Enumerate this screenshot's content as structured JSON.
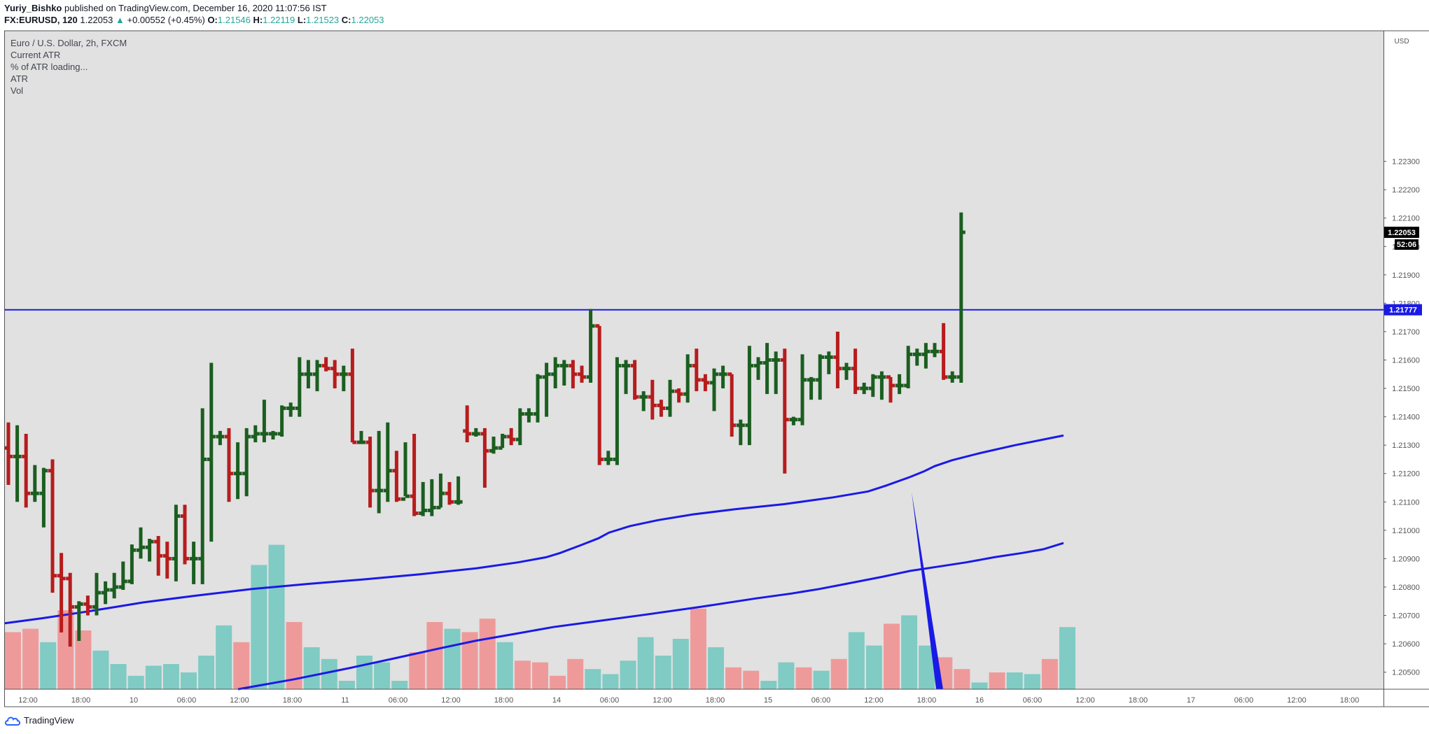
{
  "header": {
    "author": "Yuriy_Bishko",
    "published_text": "published on TradingView.com, December 16, 2020 11:07:56 IST",
    "symbol": "FX:EURUSD, 120",
    "last": "1.22053",
    "change": "+0.00552 (+0.45%)",
    "o_label": "O:",
    "o_value": "1.21546",
    "h_label": "H:",
    "h_value": "1.22119",
    "l_label": "L:",
    "l_value": "1.21523",
    "c_label": "C:",
    "c_value": "1.22053"
  },
  "legend": {
    "title": "Euro / U.S. Dollar, 2h, FXCM",
    "items": [
      "Current ATR",
      "% of ATR loading...",
      "ATR",
      "Vol"
    ]
  },
  "footer": {
    "brand": "TradingView"
  },
  "colors": {
    "up": "#1b5e20",
    "down": "#b71c1c",
    "vol_up": "#80cbc4",
    "vol_down": "#ef9a9a",
    "ma": "#1a1ae6",
    "hline": "#1a1ae6",
    "plot_bg": "#e1e1e1"
  },
  "chart_data": {
    "type": "ohlc",
    "currency": "USD",
    "ylim": [
      1.2044,
      1.2276
    ],
    "y_ticks": [
      "1.20500",
      "1.20600",
      "1.20700",
      "1.20800",
      "1.20900",
      "1.21000",
      "1.21100",
      "1.21200",
      "1.21300",
      "1.21400",
      "1.21500",
      "1.21600",
      "1.21700",
      "1.21800",
      "1.21900",
      "1.22000",
      "1.22100",
      "1.22200",
      "1.22300"
    ],
    "x_ticks": [
      "12:00",
      "18:00",
      "10",
      "06:00",
      "12:00",
      "18:00",
      "11",
      "06:00",
      "12:00",
      "18:00",
      "14",
      "06:00",
      "12:00",
      "18:00",
      "15",
      "06:00",
      "12:00",
      "18:00",
      "16",
      "06:00",
      "12:00",
      "18:00",
      "17",
      "06:00",
      "12:00",
      "18:00"
    ],
    "last_price_label": "1.22053",
    "countdown_label": "52:06",
    "hline_label": "1.21777",
    "hline_value": 1.21777,
    "bars": [
      {
        "o": 1.2129,
        "h": 1.2138,
        "l": 1.2116,
        "c": 1.2126
      },
      {
        "o": 1.2126,
        "h": 1.2137,
        "l": 1.211,
        "c": 1.2126
      },
      {
        "o": 1.2126,
        "h": 1.2134,
        "l": 1.2108,
        "c": 1.2113
      },
      {
        "o": 1.2113,
        "h": 1.2123,
        "l": 1.211,
        "c": 1.2113
      },
      {
        "o": 1.2113,
        "h": 1.2122,
        "l": 1.2101,
        "c": 1.2121
      },
      {
        "o": 1.2121,
        "h": 1.2125,
        "l": 1.2078,
        "c": 1.2084
      },
      {
        "o": 1.2084,
        "h": 1.2092,
        "l": 1.2064,
        "c": 1.2083
      },
      {
        "o": 1.2083,
        "h": 1.2085,
        "l": 1.2059,
        "c": 1.2073
      },
      {
        "o": 1.2073,
        "h": 1.2075,
        "l": 1.2061,
        "c": 1.2074
      },
      {
        "o": 1.2074,
        "h": 1.2077,
        "l": 1.207,
        "c": 1.2073
      },
      {
        "o": 1.2073,
        "h": 1.2085,
        "l": 1.207,
        "c": 1.2078
      },
      {
        "o": 1.2078,
        "h": 1.2082,
        "l": 1.2074,
        "c": 1.2079
      },
      {
        "o": 1.2079,
        "h": 1.2085,
        "l": 1.2076,
        "c": 1.208
      },
      {
        "o": 1.208,
        "h": 1.2089,
        "l": 1.2079,
        "c": 1.2082
      },
      {
        "o": 1.2082,
        "h": 1.2095,
        "l": 1.2081,
        "c": 1.2093
      },
      {
        "o": 1.2093,
        "h": 1.2101,
        "l": 1.209,
        "c": 1.2094
      },
      {
        "o": 1.2094,
        "h": 1.2097,
        "l": 1.2089,
        "c": 1.2096
      },
      {
        "o": 1.2096,
        "h": 1.2098,
        "l": 1.2084,
        "c": 1.2091
      },
      {
        "o": 1.2091,
        "h": 1.2096,
        "l": 1.2083,
        "c": 1.209
      },
      {
        "o": 1.209,
        "h": 1.2109,
        "l": 1.2082,
        "c": 1.2105
      },
      {
        "o": 1.2105,
        "h": 1.2109,
        "l": 1.2088,
        "c": 1.209
      },
      {
        "o": 1.209,
        "h": 1.2096,
        "l": 1.2081,
        "c": 1.209
      },
      {
        "o": 1.209,
        "h": 1.2143,
        "l": 1.2081,
        "c": 1.2125
      },
      {
        "o": 1.2125,
        "h": 1.2159,
        "l": 1.2096,
        "c": 1.2133
      },
      {
        "o": 1.2133,
        "h": 1.2135,
        "l": 1.213,
        "c": 1.2133
      },
      {
        "o": 1.2133,
        "h": 1.2136,
        "l": 1.211,
        "c": 1.212
      },
      {
        "o": 1.212,
        "h": 1.2131,
        "l": 1.2111,
        "c": 1.212
      },
      {
        "o": 1.212,
        "h": 1.2136,
        "l": 1.2112,
        "c": 1.2133
      },
      {
        "o": 1.2133,
        "h": 1.2137,
        "l": 1.2131,
        "c": 1.2134
      },
      {
        "o": 1.2134,
        "h": 1.2146,
        "l": 1.2131,
        "c": 1.2134
      },
      {
        "o": 1.2134,
        "h": 1.2135,
        "l": 1.2132,
        "c": 1.2134
      },
      {
        "o": 1.2134,
        "h": 1.2144,
        "l": 1.2133,
        "c": 1.2143
      },
      {
        "o": 1.2143,
        "h": 1.2145,
        "l": 1.214,
        "c": 1.2143
      },
      {
        "o": 1.2143,
        "h": 1.2161,
        "l": 1.214,
        "c": 1.2155
      },
      {
        "o": 1.2155,
        "h": 1.216,
        "l": 1.215,
        "c": 1.2155
      },
      {
        "o": 1.2155,
        "h": 1.216,
        "l": 1.2149,
        "c": 1.2158
      },
      {
        "o": 1.2158,
        "h": 1.2161,
        "l": 1.2156,
        "c": 1.2157
      },
      {
        "o": 1.2157,
        "h": 1.216,
        "l": 1.215,
        "c": 1.2155
      },
      {
        "o": 1.2155,
        "h": 1.2158,
        "l": 1.2149,
        "c": 1.2155
      },
      {
        "o": 1.2155,
        "h": 1.2164,
        "l": 1.2131,
        "c": 1.2131
      },
      {
        "o": 1.2131,
        "h": 1.2135,
        "l": 1.2131,
        "c": 1.2131
      },
      {
        "o": 1.2131,
        "h": 1.2133,
        "l": 1.2108,
        "c": 1.2114
      },
      {
        "o": 1.2114,
        "h": 1.2135,
        "l": 1.2106,
        "c": 1.2114
      },
      {
        "o": 1.2114,
        "h": 1.2138,
        "l": 1.211,
        "c": 1.2121
      },
      {
        "o": 1.2121,
        "h": 1.2128,
        "l": 1.211,
        "c": 1.2111
      },
      {
        "o": 1.2111,
        "h": 1.2131,
        "l": 1.2112,
        "c": 1.2112
      },
      {
        "o": 1.2112,
        "h": 1.2134,
        "l": 1.2105,
        "c": 1.2106
      },
      {
        "o": 1.2106,
        "h": 1.2117,
        "l": 1.2105,
        "c": 1.2107
      },
      {
        "o": 1.2107,
        "h": 1.2118,
        "l": 1.2105,
        "c": 1.2108
      },
      {
        "o": 1.2108,
        "h": 1.212,
        "l": 1.2108,
        "c": 1.2113
      },
      {
        "o": 1.2113,
        "h": 1.2117,
        "l": 1.2109,
        "c": 1.211
      },
      {
        "o": 1.211,
        "h": 1.2119,
        "l": 1.2109,
        "c": 1.211
      },
      {
        "o": 1.2135,
        "h": 1.2144,
        "l": 1.2131,
        "c": 1.2134
      },
      {
        "o": 1.2134,
        "h": 1.2136,
        "l": 1.2133,
        "c": 1.2134
      },
      {
        "o": 1.2134,
        "h": 1.2136,
        "l": 1.2115,
        "c": 1.2128
      },
      {
        "o": 1.2128,
        "h": 1.2133,
        "l": 1.2127,
        "c": 1.2129
      },
      {
        "o": 1.2129,
        "h": 1.2134,
        "l": 1.2129,
        "c": 1.2133
      },
      {
        "o": 1.2133,
        "h": 1.2136,
        "l": 1.213,
        "c": 1.2132
      },
      {
        "o": 1.2132,
        "h": 1.2143,
        "l": 1.213,
        "c": 1.2141
      },
      {
        "o": 1.2141,
        "h": 1.2143,
        "l": 1.2138,
        "c": 1.2141
      },
      {
        "o": 1.2141,
        "h": 1.2155,
        "l": 1.2138,
        "c": 1.2154
      },
      {
        "o": 1.2154,
        "h": 1.2159,
        "l": 1.214,
        "c": 1.2155
      },
      {
        "o": 1.2155,
        "h": 1.2161,
        "l": 1.215,
        "c": 1.2158
      },
      {
        "o": 1.2158,
        "h": 1.216,
        "l": 1.2151,
        "c": 1.2158
      },
      {
        "o": 1.2158,
        "h": 1.216,
        "l": 1.215,
        "c": 1.2155
      },
      {
        "o": 1.2155,
        "h": 1.2158,
        "l": 1.2152,
        "c": 1.2154
      },
      {
        "o": 1.2154,
        "h": 1.2178,
        "l": 1.2152,
        "c": 1.2172
      },
      {
        "o": 1.2172,
        "h": 1.2172,
        "l": 1.2123,
        "c": 1.2125
      },
      {
        "o": 1.2125,
        "h": 1.2128,
        "l": 1.2123,
        "c": 1.2125
      },
      {
        "o": 1.2125,
        "h": 1.2161,
        "l": 1.2123,
        "c": 1.2158
      },
      {
        "o": 1.2158,
        "h": 1.216,
        "l": 1.2148,
        "c": 1.2158
      },
      {
        "o": 1.2158,
        "h": 1.216,
        "l": 1.2146,
        "c": 1.2147
      },
      {
        "o": 1.2147,
        "h": 1.2149,
        "l": 1.2142,
        "c": 1.2147
      },
      {
        "o": 1.2147,
        "h": 1.2153,
        "l": 1.2139,
        "c": 1.2144
      },
      {
        "o": 1.2144,
        "h": 1.2146,
        "l": 1.214,
        "c": 1.2143
      },
      {
        "o": 1.2143,
        "h": 1.2153,
        "l": 1.214,
        "c": 1.2149
      },
      {
        "o": 1.2149,
        "h": 1.215,
        "l": 1.2145,
        "c": 1.2148
      },
      {
        "o": 1.2148,
        "h": 1.2162,
        "l": 1.2145,
        "c": 1.2158
      },
      {
        "o": 1.2158,
        "h": 1.2164,
        "l": 1.2149,
        "c": 1.2153
      },
      {
        "o": 1.2153,
        "h": 1.2155,
        "l": 1.2149,
        "c": 1.2152
      },
      {
        "o": 1.2152,
        "h": 1.2157,
        "l": 1.2142,
        "c": 1.2155
      },
      {
        "o": 1.2155,
        "h": 1.2158,
        "l": 1.215,
        "c": 1.2155
      },
      {
        "o": 1.2155,
        "h": 1.2155,
        "l": 1.2133,
        "c": 1.2137
      },
      {
        "o": 1.2137,
        "h": 1.2139,
        "l": 1.213,
        "c": 1.2137
      },
      {
        "o": 1.2137,
        "h": 1.2165,
        "l": 1.213,
        "c": 1.2158
      },
      {
        "o": 1.2158,
        "h": 1.2161,
        "l": 1.2153,
        "c": 1.2159
      },
      {
        "o": 1.2159,
        "h": 1.2166,
        "l": 1.2148,
        "c": 1.216
      },
      {
        "o": 1.216,
        "h": 1.2163,
        "l": 1.2148,
        "c": 1.216
      },
      {
        "o": 1.216,
        "h": 1.2164,
        "l": 1.212,
        "c": 1.2139
      },
      {
        "o": 1.2139,
        "h": 1.214,
        "l": 1.2137,
        "c": 1.2139
      },
      {
        "o": 1.2139,
        "h": 1.2162,
        "l": 1.2137,
        "c": 1.2153
      },
      {
        "o": 1.2153,
        "h": 1.2154,
        "l": 1.2146,
        "c": 1.2153
      },
      {
        "o": 1.2153,
        "h": 1.2162,
        "l": 1.2146,
        "c": 1.2161
      },
      {
        "o": 1.2161,
        "h": 1.2163,
        "l": 1.2155,
        "c": 1.2161
      },
      {
        "o": 1.2161,
        "h": 1.217,
        "l": 1.215,
        "c": 1.2157
      },
      {
        "o": 1.2157,
        "h": 1.2159,
        "l": 1.2153,
        "c": 1.2157
      },
      {
        "o": 1.2157,
        "h": 1.2164,
        "l": 1.2148,
        "c": 1.215
      },
      {
        "o": 1.215,
        "h": 1.2152,
        "l": 1.2148,
        "c": 1.215
      },
      {
        "o": 1.215,
        "h": 1.2155,
        "l": 1.2147,
        "c": 1.2154
      },
      {
        "o": 1.2154,
        "h": 1.2156,
        "l": 1.2146,
        "c": 1.2154
      },
      {
        "o": 1.2154,
        "h": 1.2154,
        "l": 1.2145,
        "c": 1.2151
      },
      {
        "o": 1.2151,
        "h": 1.2155,
        "l": 1.2148,
        "c": 1.2151
      },
      {
        "o": 1.2151,
        "h": 1.2165,
        "l": 1.215,
        "c": 1.2162
      },
      {
        "o": 1.2162,
        "h": 1.2164,
        "l": 1.2158,
        "c": 1.2162
      },
      {
        "o": 1.2162,
        "h": 1.2166,
        "l": 1.2157,
        "c": 1.2163
      },
      {
        "o": 1.2163,
        "h": 1.2166,
        "l": 1.2161,
        "c": 1.2163
      },
      {
        "o": 1.2163,
        "h": 1.2173,
        "l": 1.2153,
        "c": 1.2154
      },
      {
        "o": 1.2154,
        "h": 1.2156,
        "l": 1.2152,
        "c": 1.2154
      },
      {
        "o": 1.2154,
        "h": 1.2212,
        "l": 1.2152,
        "c": 1.2205
      }
    ],
    "volume": [
      {
        "v": 0.34,
        "dir": "down"
      },
      {
        "v": 0.36,
        "dir": "down"
      },
      {
        "v": 0.28,
        "dir": "up"
      },
      {
        "v": 0.47,
        "dir": "down"
      },
      {
        "v": 0.35,
        "dir": "down"
      },
      {
        "v": 0.23,
        "dir": "up"
      },
      {
        "v": 0.15,
        "dir": "up"
      },
      {
        "v": 0.08,
        "dir": "up"
      },
      {
        "v": 0.14,
        "dir": "up"
      },
      {
        "v": 0.15,
        "dir": "up"
      },
      {
        "v": 0.1,
        "dir": "up"
      },
      {
        "v": 0.2,
        "dir": "up"
      },
      {
        "v": 0.38,
        "dir": "up"
      },
      {
        "v": 0.28,
        "dir": "down"
      },
      {
        "v": 0.74,
        "dir": "up"
      },
      {
        "v": 0.86,
        "dir": "up"
      },
      {
        "v": 0.4,
        "dir": "down"
      },
      {
        "v": 0.25,
        "dir": "up"
      },
      {
        "v": 0.18,
        "dir": "up"
      },
      {
        "v": 0.05,
        "dir": "up"
      },
      {
        "v": 0.2,
        "dir": "up"
      },
      {
        "v": 0.16,
        "dir": "up"
      },
      {
        "v": 0.05,
        "dir": "up"
      },
      {
        "v": 0.22,
        "dir": "down"
      },
      {
        "v": 0.4,
        "dir": "down"
      },
      {
        "v": 0.36,
        "dir": "up"
      },
      {
        "v": 0.34,
        "dir": "down"
      },
      {
        "v": 0.42,
        "dir": "down"
      },
      {
        "v": 0.28,
        "dir": "up"
      },
      {
        "v": 0.17,
        "dir": "down"
      },
      {
        "v": 0.16,
        "dir": "down"
      },
      {
        "v": 0.08,
        "dir": "down"
      },
      {
        "v": 0.18,
        "dir": "down"
      },
      {
        "v": 0.12,
        "dir": "up"
      },
      {
        "v": 0.09,
        "dir": "up"
      },
      {
        "v": 0.17,
        "dir": "up"
      },
      {
        "v": 0.31,
        "dir": "up"
      },
      {
        "v": 0.2,
        "dir": "up"
      },
      {
        "v": 0.3,
        "dir": "up"
      },
      {
        "v": 0.48,
        "dir": "down"
      },
      {
        "v": 0.25,
        "dir": "up"
      },
      {
        "v": 0.13,
        "dir": "down"
      },
      {
        "v": 0.11,
        "dir": "down"
      },
      {
        "v": 0.05,
        "dir": "up"
      },
      {
        "v": 0.16,
        "dir": "up"
      },
      {
        "v": 0.13,
        "dir": "down"
      },
      {
        "v": 0.11,
        "dir": "up"
      },
      {
        "v": 0.18,
        "dir": "down"
      },
      {
        "v": 0.34,
        "dir": "up"
      },
      {
        "v": 0.26,
        "dir": "up"
      },
      {
        "v": 0.39,
        "dir": "down"
      },
      {
        "v": 0.44,
        "dir": "up"
      },
      {
        "v": 0.26,
        "dir": "up"
      },
      {
        "v": 0.19,
        "dir": "down"
      },
      {
        "v": 0.12,
        "dir": "down"
      },
      {
        "v": 0.04,
        "dir": "up"
      },
      {
        "v": 0.1,
        "dir": "down"
      },
      {
        "v": 0.1,
        "dir": "up"
      },
      {
        "v": 0.09,
        "dir": "up"
      },
      {
        "v": 0.18,
        "dir": "down"
      },
      {
        "v": 0.37,
        "dir": "up"
      }
    ],
    "ma_fast": [
      {
        "x": 6,
        "y": 1.20672
      },
      {
        "x": 60,
        "y": 1.2069
      },
      {
        "x": 120,
        "y": 1.20712
      },
      {
        "x": 170,
        "y": 1.20732
      },
      {
        "x": 205,
        "y": 1.20746
      },
      {
        "x": 280,
        "y": 1.2077
      },
      {
        "x": 360,
        "y": 1.20793
      },
      {
        "x": 440,
        "y": 1.20811
      },
      {
        "x": 520,
        "y": 1.20827
      },
      {
        "x": 600,
        "y": 1.20845
      },
      {
        "x": 680,
        "y": 1.20866
      },
      {
        "x": 740,
        "y": 1.20887
      },
      {
        "x": 780,
        "y": 1.20905
      },
      {
        "x": 800,
        "y": 1.2092
      },
      {
        "x": 830,
        "y": 1.20948
      },
      {
        "x": 855,
        "y": 1.20972
      },
      {
        "x": 870,
        "y": 1.20992
      },
      {
        "x": 900,
        "y": 1.21015
      },
      {
        "x": 940,
        "y": 1.21036
      },
      {
        "x": 990,
        "y": 1.21056
      },
      {
        "x": 1050,
        "y": 1.21074
      },
      {
        "x": 1120,
        "y": 1.21092
      },
      {
        "x": 1190,
        "y": 1.21116
      },
      {
        "x": 1240,
        "y": 1.21137
      },
      {
        "x": 1265,
        "y": 1.21157
      },
      {
        "x": 1300,
        "y": 1.21188
      },
      {
        "x": 1320,
        "y": 1.21208
      },
      {
        "x": 1335,
        "y": 1.21226
      },
      {
        "x": 1360,
        "y": 1.21247
      },
      {
        "x": 1400,
        "y": 1.21272
      },
      {
        "x": 1450,
        "y": 1.213
      },
      {
        "x": 1519,
        "y": 1.21334
      }
    ],
    "ma_slow": [
      {
        "x": 340,
        "y": 1.2044
      },
      {
        "x": 420,
        "y": 1.20475
      },
      {
        "x": 500,
        "y": 1.20515
      },
      {
        "x": 560,
        "y": 1.20547
      },
      {
        "x": 630,
        "y": 1.20585
      },
      {
        "x": 680,
        "y": 1.20611
      },
      {
        "x": 740,
        "y": 1.20637
      },
      {
        "x": 790,
        "y": 1.20659
      },
      {
        "x": 850,
        "y": 1.20679
      },
      {
        "x": 920,
        "y": 1.20702
      },
      {
        "x": 1000,
        "y": 1.2073
      },
      {
        "x": 1080,
        "y": 1.2076
      },
      {
        "x": 1130,
        "y": 1.20777
      },
      {
        "x": 1170,
        "y": 1.20793
      },
      {
        "x": 1210,
        "y": 1.20812
      },
      {
        "x": 1260,
        "y": 1.20836
      },
      {
        "x": 1300,
        "y": 1.20857
      },
      {
        "x": 1340,
        "y": 1.20872
      },
      {
        "x": 1380,
        "y": 1.20887
      },
      {
        "x": 1420,
        "y": 1.20905
      },
      {
        "x": 1460,
        "y": 1.2092
      },
      {
        "x": 1490,
        "y": 1.20933
      },
      {
        "x": 1519,
        "y": 1.20955
      }
    ],
    "atr_arrow": {
      "x1": 1302,
      "y1": 1.21136,
      "x2": 1340,
      "y2": 1.2044
    }
  }
}
